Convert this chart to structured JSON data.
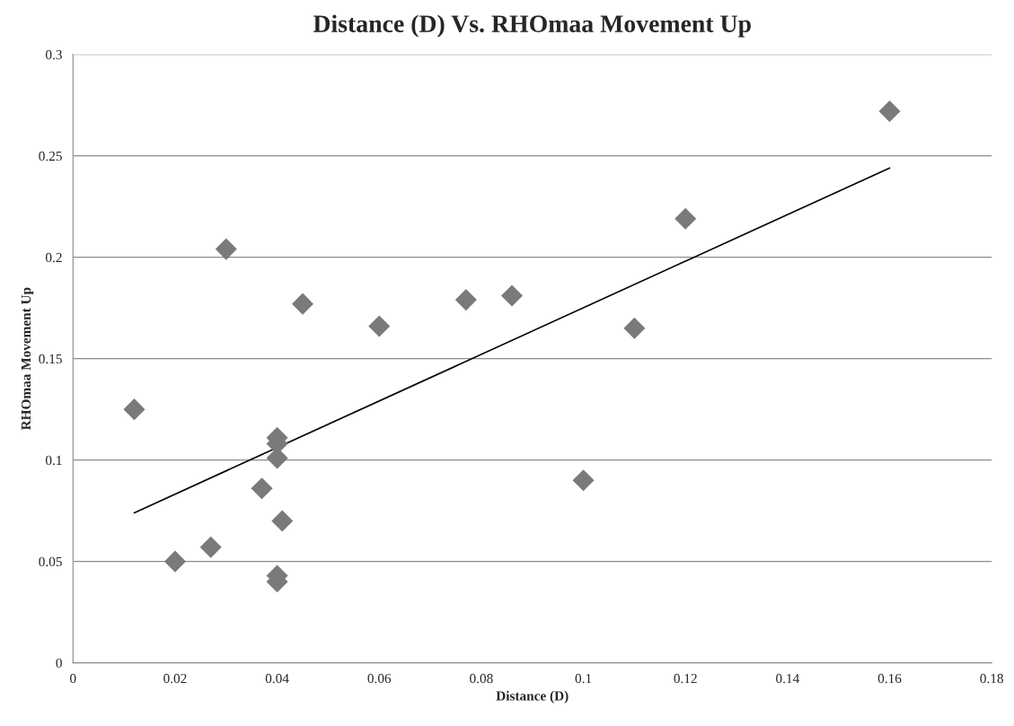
{
  "chart_data": {
    "type": "scatter",
    "title": "Distance (D) Vs. RHOmaa Movement Up",
    "xlabel": "Distance (D)",
    "ylabel": "RHOmaa Movement Up",
    "series": [
      {
        "color": "#7a7a7a",
        "marker": "diamond",
        "x": [
          0.012,
          0.02,
          0.027,
          0.03,
          0.037,
          0.04,
          0.04,
          0.04,
          0.041,
          0.04,
          0.04,
          0.045,
          0.06,
          0.077,
          0.086,
          0.1,
          0.11,
          0.12,
          0.16
        ],
        "values": [
          0.125,
          0.05,
          0.057,
          0.204,
          0.086,
          0.111,
          0.108,
          0.101,
          0.07,
          0.043,
          0.04,
          0.177,
          0.166,
          0.179,
          0.181,
          0.09,
          0.165,
          0.219,
          0.272
        ]
      },
      {
        "type": "line",
        "color": "#000000",
        "marker": "none",
        "line_style": "solid",
        "x": [
          0.012,
          0.16
        ],
        "values": [
          0.074,
          0.244
        ]
      }
    ],
    "xlim": [
      0,
      0.18
    ],
    "xticks": [
      0,
      0.02,
      0.04,
      0.06,
      0.08,
      0.1,
      0.12,
      0.14,
      0.16,
      0.18
    ],
    "ylim": [
      0,
      0.3
    ],
    "yticks": [
      0,
      0.05,
      0.1,
      0.15,
      0.2,
      0.25,
      0.3
    ],
    "grid": "y",
    "legend": false
  }
}
